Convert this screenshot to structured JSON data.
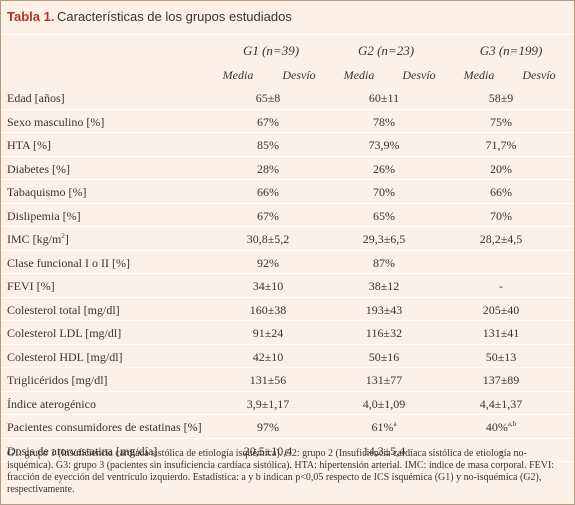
{
  "title": {
    "label": "Tabla 1.",
    "text": "Características de los grupos estudiados"
  },
  "groups": [
    "G1 (n=39)",
    "G2 (n=23)",
    "G3 (n=199)"
  ],
  "subheaders": {
    "media": "Media",
    "desvio": "Desvío"
  },
  "rows": [
    {
      "label": "Edad [años]",
      "g1": "65±8",
      "g2": "60±11",
      "g3": "58±9"
    },
    {
      "label": "Sexo masculino [%]",
      "g1": "67%",
      "g2": "78%",
      "g3": "75%"
    },
    {
      "label": "HTA [%]",
      "g1": "85%",
      "g2": "73,9%",
      "g3": "71,7%"
    },
    {
      "label": "Diabetes [%]",
      "g1": "28%",
      "g2": "26%",
      "g3": "20%"
    },
    {
      "label": "Tabaquismo [%]",
      "g1": "66%",
      "g2": "70%",
      "g3": "66%"
    },
    {
      "label": "Dislipemia [%]",
      "g1": "67%",
      "g2": "65%",
      "g3": "70%"
    },
    {
      "label": "IMC [kg/m",
      "label_sup": "2",
      "label_after": "]",
      "g1": "30,8±5,2",
      "g2": "29,3±6,5",
      "g3": "28,2±4,5"
    },
    {
      "label": "Clase funcional I o II [%]",
      "g1": "92%",
      "g2": "87%",
      "g3": ""
    },
    {
      "label": "FEVI [%]",
      "g1": "34±10",
      "g2": "38±12",
      "g3": "-"
    },
    {
      "label": "Colesterol total [mg/dl]",
      "g1": "160±38",
      "g2": "193±43",
      "g3": "205±40"
    },
    {
      "label": "Colesterol LDL [mg/dl]",
      "g1": "91±24",
      "g2": "116±32",
      "g3": "131±41"
    },
    {
      "label": "Colesterol HDL [mg/dl]",
      "g1": "42±10",
      "g2": "50±16",
      "g3": "50±13"
    },
    {
      "label": "Triglicéridos [mg/dl]",
      "g1": "131±56",
      "g2": "131±77",
      "g3": "137±89"
    },
    {
      "label": "Índice aterogénico",
      "g1": "3,9±1,17",
      "g2": "4,0±1,09",
      "g3": "4,4±1,37"
    },
    {
      "label": "Pacientes consumidores de estatinas [%]",
      "g1": "97%",
      "g2": "61%",
      "g2_sup": "a",
      "g3": "40%",
      "g3_sup": "a,b"
    },
    {
      "label": "Dosis de atorvastatina [mg/día]",
      "g1": "20,5±10,4",
      "g2": "14,3±5,4",
      "g3": "-"
    }
  ],
  "footnote": "G1: grupo 1 (Insuficiencia cardíaca sistólica de etiología isquémica). G2: grupo 2 (Insuficiencia cardíaca sistólica de etiología no-isquémica). G3: grupo 3 (pacientes sin insuficiencia cardíaca sistólica). HTA: hipertensión arterial. IMC: índice de masa corporal. FEVI: fracción de eyección del ventrículo izquierdo. Estadística: a y b indican p<0,05 respecto de ICS isquémica (G1) y no-isquémica (G2), respectivamente."
}
